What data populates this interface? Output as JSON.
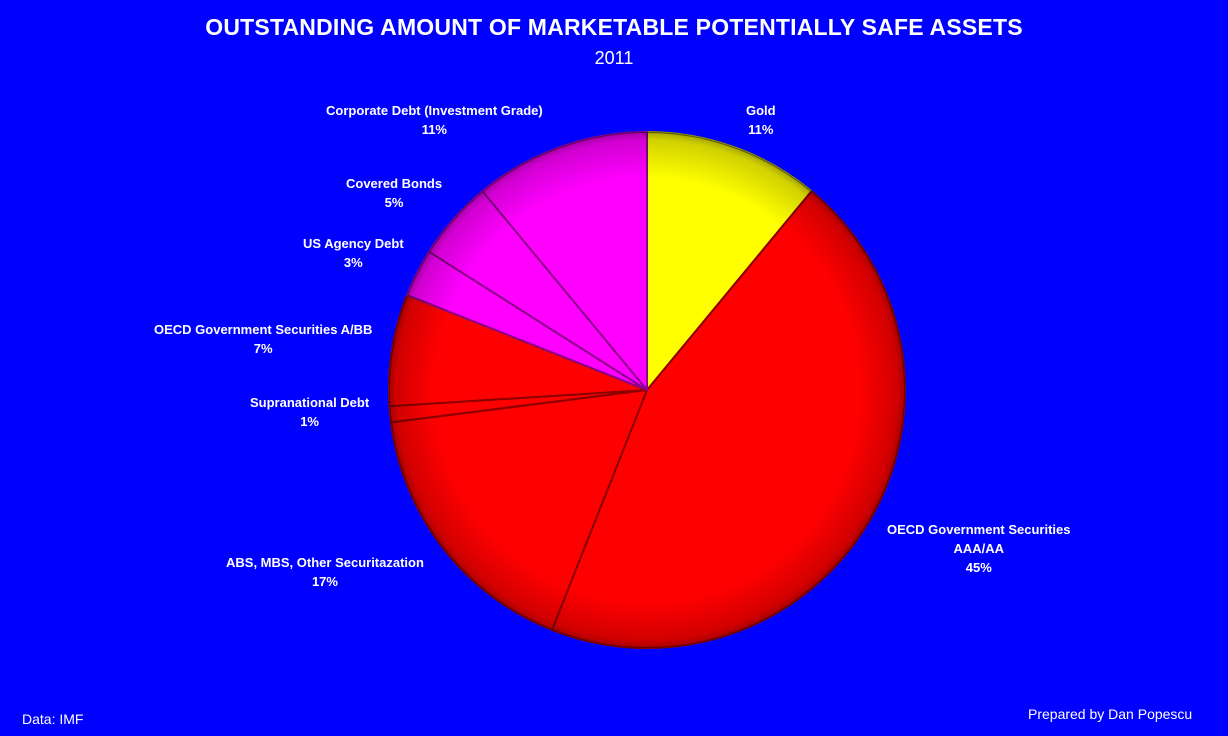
{
  "chart_data": {
    "type": "pie",
    "title": "OUTSTANDING AMOUNT OF MARKETABLE POTENTIALLY SAFE ASSETS",
    "subtitle": "2011",
    "slices": [
      {
        "name": "Gold",
        "label_lines": [
          "Gold"
        ],
        "value_label": "11%",
        "value": 11,
        "color": "#ffff00"
      },
      {
        "name": "OECD Government Securities AAA/AA",
        "label_lines": [
          "OECD Government Securities",
          "AAA/AA"
        ],
        "value_label": "45%",
        "value": 45,
        "color": "#ff0000"
      },
      {
        "name": "ABS, MBS, Other Securitazation",
        "label_lines": [
          "ABS, MBS, Other Securitazation"
        ],
        "value_label": "17%",
        "value": 17,
        "color": "#ff0000"
      },
      {
        "name": "Supranational Debt",
        "label_lines": [
          "Supranational Debt"
        ],
        "value_label": "1%",
        "value": 1,
        "color": "#ff0000"
      },
      {
        "name": "OECD Government Securities A/BB",
        "label_lines": [
          "OECD Government Securities A/BB"
        ],
        "value_label": "7%",
        "value": 7,
        "color": "#ff0000"
      },
      {
        "name": "US Agency Debt",
        "label_lines": [
          "US Agency Debt"
        ],
        "value_label": "3%",
        "value": 3,
        "color": "#ff00ff"
      },
      {
        "name": "Covered Bonds",
        "label_lines": [
          "Covered Bonds"
        ],
        "value_label": "5%",
        "value": 5,
        "color": "#ff00ff"
      },
      {
        "name": "Corporate Debt (Investment Grade)",
        "label_lines": [
          "Corporate Debt (Investment Grade)"
        ],
        "value_label": "11%",
        "value": 11,
        "color": "#ff00ff"
      }
    ],
    "start_angle": "12 o'clock",
    "direction": "clockwise",
    "legend": "none",
    "background_color": "#0000ff"
  },
  "footer": {
    "source": "Data: IMF",
    "credit": "Prepared by Dan Popescu"
  }
}
